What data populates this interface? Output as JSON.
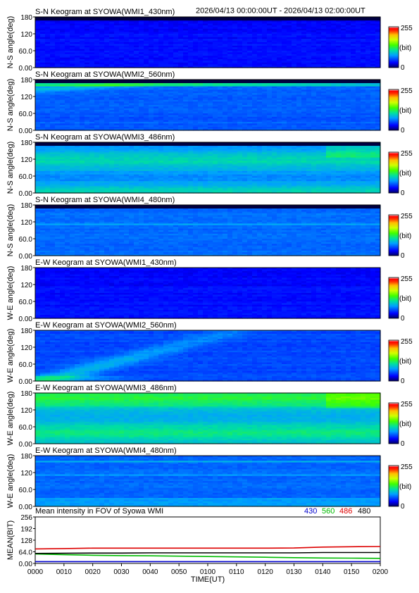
{
  "header": {
    "time_range": "2026/04/13 00:00:00UT - 2026/04/13 02:00:00UT"
  },
  "colorbar": {
    "max_label": "255",
    "unit_label": "(bit)",
    "min_label": "0"
  },
  "colors": {
    "scale": [
      "#000066",
      "#0000ff",
      "#00a0ff",
      "#00e0a0",
      "#40ff00",
      "#d0ff00",
      "#ffc000",
      "#ff4000",
      "#ff0000",
      "#ffffff"
    ],
    "frame": "#000000",
    "series_430": "#0000cc",
    "series_560": "#00bb00",
    "series_486": "#dd0000",
    "series_480": "#000000"
  },
  "chart_data": [
    {
      "type": "heatmap",
      "title": "S-N Keogram at SYOWA(WMI1_430nm)",
      "ylabel": "N-S angle(deg)",
      "yticks": [
        "180",
        "120",
        "60.0",
        "0.00"
      ],
      "ylim": [
        0,
        180
      ],
      "zlim": [
        0,
        255
      ],
      "level": 0.14,
      "band_frac": 0.07,
      "emission": "430"
    },
    {
      "type": "heatmap",
      "title": "S-N Keogram at SYOWA(WMI2_560nm)",
      "ylabel": "N-S angle(deg)",
      "yticks": [
        "180",
        "120",
        "60.0",
        "0.00"
      ],
      "ylim": [
        0,
        180
      ],
      "zlim": [
        0,
        255
      ],
      "level": 0.22,
      "band_frac": 0.07,
      "emission": "560"
    },
    {
      "type": "heatmap",
      "title": "S-N Keogram at SYOWA(WMI3_486nm)",
      "ylabel": "N-S angle(deg)",
      "yticks": [
        "180",
        "120",
        "60.0",
        "0.00"
      ],
      "ylim": [
        0,
        180
      ],
      "zlim": [
        0,
        255
      ],
      "level": 0.34,
      "band_frac": 0.07,
      "emission": "486"
    },
    {
      "type": "heatmap",
      "title": "S-N Keogram at SYOWA(WMI4_480nm)",
      "ylabel": "N-S angle(deg)",
      "yticks": [
        "180",
        "120",
        "60.0",
        "0.00"
      ],
      "ylim": [
        0,
        180
      ],
      "zlim": [
        0,
        255
      ],
      "level": 0.24,
      "band_frac": 0.07,
      "emission": "480"
    },
    {
      "type": "heatmap",
      "title": "E-W Keogram at SYOWA(WMI1_430nm)",
      "ylabel": "W-E angle(deg)",
      "yticks": [
        "180",
        "120",
        "60.0",
        "0.00"
      ],
      "ylim": [
        0,
        180
      ],
      "zlim": [
        0,
        255
      ],
      "level": 0.14,
      "band_frac": 0.0,
      "emission": "430"
    },
    {
      "type": "heatmap",
      "title": "E-W Keogram at SYOWA(WMI2_560nm)",
      "ylabel": "W-E angle(deg)",
      "yticks": [
        "180",
        "120",
        "60.0",
        "0.00"
      ],
      "ylim": [
        0,
        180
      ],
      "zlim": [
        0,
        255
      ],
      "level": 0.2,
      "band_frac": 0.0,
      "emission": "560"
    },
    {
      "type": "heatmap",
      "title": "E-W Keogram at SYOWA(WMI3_486nm)",
      "ylabel": "W-E angle(deg)",
      "yticks": [
        "180",
        "120",
        "60.0",
        "0.00"
      ],
      "ylim": [
        0,
        180
      ],
      "zlim": [
        0,
        255
      ],
      "level": 0.38,
      "band_frac": 0.0,
      "emission": "486"
    },
    {
      "type": "heatmap",
      "title": "E-W Keogram at SYOWA(WMI4_480nm)",
      "ylabel": "W-E angle(deg)",
      "yticks": [
        "180",
        "120",
        "60.0",
        "0.00"
      ],
      "ylim": [
        0,
        180
      ],
      "zlim": [
        0,
        255
      ],
      "level": 0.24,
      "band_frac": 0.0,
      "emission": "480"
    },
    {
      "type": "line",
      "title": "Mean intensity in FOV of Syowa WMI",
      "ylabel": "MEAN(BIT)",
      "xlabel": "TIME(UT)",
      "x_range_ut": [
        "0000",
        "0200"
      ],
      "xticks": [
        "0000",
        "0010",
        "0020",
        "0030",
        "0040",
        "0050",
        "0100",
        "0110",
        "0120",
        "0130",
        "0140",
        "0150",
        "0200"
      ],
      "ylim": [
        0,
        256
      ],
      "yticks": [
        "256",
        "192",
        "128",
        "64.0",
        "0.00"
      ],
      "x": [
        "0000",
        "0010",
        "0020",
        "0030",
        "0040",
        "0050",
        "0100",
        "0110",
        "0120",
        "0130",
        "0140",
        "0150",
        "0200"
      ],
      "series": [
        {
          "name": "430",
          "color": "#0000cc",
          "values": [
            10,
            10,
            10,
            10,
            10,
            10,
            10,
            10,
            10,
            10,
            10,
            10,
            10
          ]
        },
        {
          "name": "560",
          "color": "#00bb00",
          "values": [
            52,
            48,
            45,
            43,
            42,
            40,
            38,
            36,
            34,
            32,
            30,
            29,
            28
          ]
        },
        {
          "name": "486",
          "color": "#dd0000",
          "values": [
            80,
            82,
            84,
            84,
            84,
            84,
            84,
            84,
            84,
            85,
            90,
            92,
            93
          ]
        },
        {
          "name": "480",
          "color": "#000000",
          "values": [
            55,
            56,
            57,
            57,
            58,
            58,
            58,
            58,
            58,
            58,
            60,
            60,
            60
          ]
        }
      ]
    }
  ]
}
